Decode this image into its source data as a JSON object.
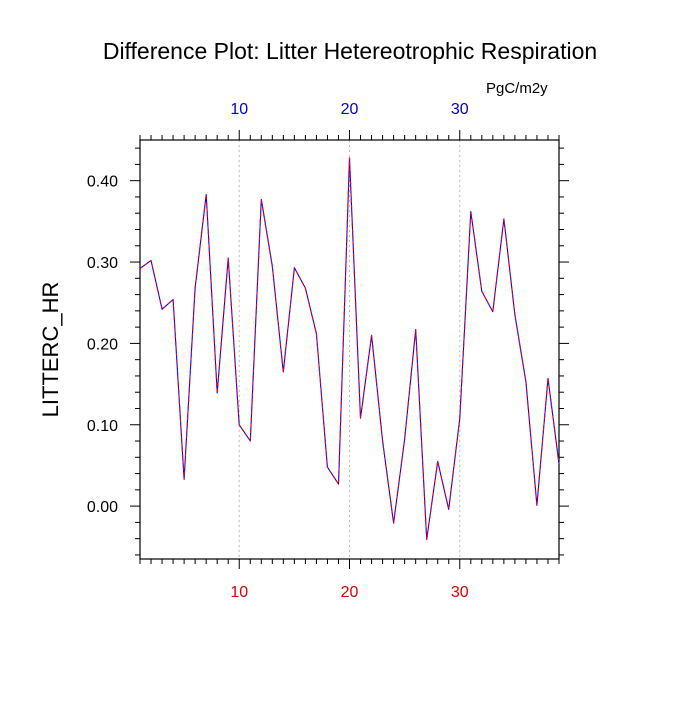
{
  "chart_data": {
    "type": "line",
    "title": "Difference Plot: Litter Hetereotrophic Respiration",
    "units": "PgC/m2y",
    "ylabel": "LITTERC_HR",
    "xlabel": "",
    "xlim": [
      1,
      39
    ],
    "ylim": [
      -0.065,
      0.45
    ],
    "x_ticks": [
      10,
      20,
      30
    ],
    "x_tick_labels": [
      "10",
      "20",
      "30"
    ],
    "top_tick_labels": [
      "10",
      "20",
      "30"
    ],
    "y_ticks": [
      0.0,
      0.1,
      0.2,
      0.3,
      0.4
    ],
    "y_tick_labels": [
      "0.00",
      "0.10",
      "0.20",
      "0.30",
      "0.40"
    ],
    "grid": "vertical dotted at x ticks",
    "colors": {
      "line_main": "#0000ff",
      "line_dash": "#ff0000",
      "top_tick_labels": "#0000cc",
      "bottom_tick_labels": "#dd0000",
      "axis": "#000000",
      "grid": "#bbbbbb"
    },
    "series": [
      {
        "x": [
          1,
          2,
          3,
          4,
          5,
          6,
          7,
          8,
          9,
          10,
          11,
          12,
          13,
          14,
          15,
          16,
          17,
          18,
          19,
          20,
          21,
          22,
          23,
          24,
          25,
          26,
          27,
          28,
          29,
          30,
          31,
          32,
          33,
          34,
          35,
          36,
          37,
          38,
          39
        ],
        "values": [
          0.292,
          0.302,
          0.242,
          0.254,
          0.033,
          0.268,
          0.383,
          0.139,
          0.305,
          0.1,
          0.08,
          0.377,
          0.295,
          0.165,
          0.293,
          0.268,
          0.212,
          0.048,
          0.027,
          0.428,
          0.108,
          0.21,
          0.08,
          -0.021,
          0.082,
          0.217,
          -0.041,
          0.055,
          -0.004,
          0.108,
          0.362,
          0.264,
          0.239,
          0.353,
          0.235,
          0.153,
          0.001,
          0.157,
          0.052
        ]
      }
    ]
  }
}
